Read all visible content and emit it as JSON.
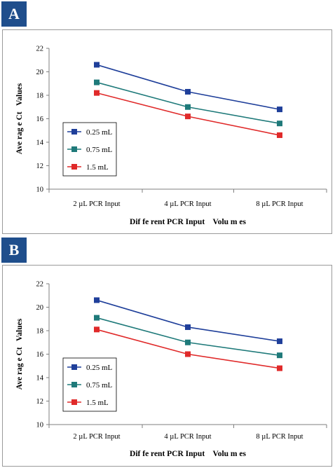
{
  "panels": [
    {
      "badge": "A",
      "chart_data": {
        "type": "line",
        "categories": [
          "2 µL PCR Input",
          "4 µL PCR Input",
          "8 µL PCR Input"
        ],
        "series": [
          {
            "name": "0.25 mL",
            "color": "#1f3f9a",
            "values": [
              20.6,
              18.3,
              16.8
            ]
          },
          {
            "name": "0.75 mL",
            "color": "#1f7a7a",
            "values": [
              19.1,
              17.0,
              15.6
            ]
          },
          {
            "name": "1.5 mL",
            "color": "#e02a2a",
            "values": [
              18.2,
              16.2,
              14.6
            ]
          }
        ],
        "xlabel": "Dif fe rent PCR Input    Volu m es",
        "ylabel": "Ave rag e Ct   Values",
        "ylim": [
          10,
          22
        ],
        "yticks": [
          "10",
          "12",
          "14",
          "16",
          "18",
          "20",
          "22"
        ],
        "legend_position": "lower-left"
      }
    },
    {
      "badge": "B",
      "chart_data": {
        "type": "line",
        "categories": [
          "2 µL PCR Input",
          "4 µL PCR Input",
          "8 µL PCR Input"
        ],
        "series": [
          {
            "name": "0.25 mL",
            "color": "#1f3f9a",
            "values": [
              20.6,
              18.3,
              17.1
            ]
          },
          {
            "name": "0.75 mL",
            "color": "#1f7a7a",
            "values": [
              19.1,
              17.0,
              15.9
            ]
          },
          {
            "name": "1.5 mL",
            "color": "#e02a2a",
            "values": [
              18.1,
              16.0,
              14.8
            ]
          }
        ],
        "xlabel": "Dif fe rent PCR Input    Volu m es",
        "ylabel": "Ave rag e Ct   Values",
        "ylim": [
          10,
          22
        ],
        "yticks": [
          "10",
          "12",
          "14",
          "16",
          "18",
          "20",
          "22"
        ],
        "legend_position": "lower-left"
      }
    }
  ]
}
